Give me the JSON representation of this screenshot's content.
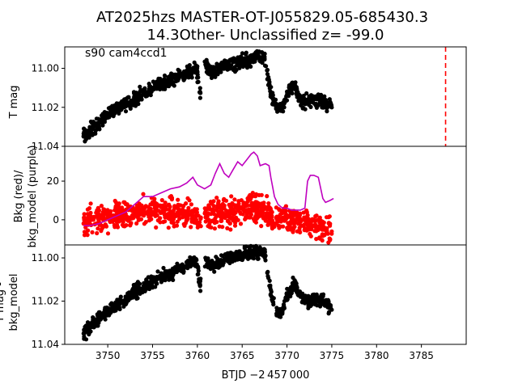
{
  "chart_data": [
    {
      "type": "scatter",
      "panel": "top",
      "title_line1": "AT2025hzs  MASTER-OT-J055829.05-685430.3",
      "title_line2": "14.3Other- Unclassified z= -99.0",
      "annotation": "s90 cam4ccd1",
      "ylabel": "T mag",
      "ylim": [
        11.04,
        10.989
      ],
      "yticks": [
        11.0,
        11.02,
        11.04
      ],
      "ytick_labels": [
        "11.00",
        "11.02",
        "11.04"
      ],
      "vline_x": 3787.7,
      "series": [
        {
          "name": "T mag",
          "color": "#000000",
          "x": [
            3747.3,
            3748,
            3749,
            3750,
            3751,
            3752,
            3753,
            3754,
            3755,
            3756,
            3757,
            3758,
            3759,
            3759.9,
            3760.3,
            3760.9,
            3761.5,
            3762.5,
            3763.5,
            3764.5,
            3765.5,
            3766.5,
            3767.5,
            3768.3,
            3768.9,
            3769.5,
            3770,
            3770.8,
            3771.5,
            3772.3,
            3773,
            3774,
            3775
          ],
          "y": [
            11.035,
            11.032,
            11.028,
            11.024,
            11.021,
            11.018,
            11.016,
            11.012,
            11.01,
            11.008,
            11.006,
            11.004,
            11.002,
            11.0,
            11.012,
            10.998,
            11.002,
            11.0,
            10.998,
            10.997,
            10.996,
            10.994,
            10.995,
            11.015,
            11.02,
            11.02,
            11.014,
            11.008,
            11.016,
            11.017,
            11.016,
            11.017,
            11.02
          ]
        }
      ]
    },
    {
      "type": "scatter",
      "panel": "middle",
      "ylabel_line1": "Bkg (red)/",
      "ylabel_line2": "bkg_model (purple)",
      "ylim": [
        -13,
        38
      ],
      "yticks": [
        0,
        20
      ],
      "ytick_labels": [
        "0",
        "20"
      ],
      "series": [
        {
          "name": "Bkg",
          "color": "#ff0000",
          "x": [
            3747.3,
            3748,
            3749,
            3750,
            3751,
            3752,
            3753,
            3754,
            3755,
            3756,
            3757,
            3758,
            3759,
            3759.9,
            3760.3,
            3760.9,
            3761.5,
            3762.5,
            3763.5,
            3764.5,
            3765.5,
            3766.5,
            3767.5,
            3768.3,
            3768.9,
            3769.5,
            3770,
            3770.8,
            3771.5,
            3772.3,
            3773,
            3774,
            3775
          ],
          "y": [
            -2,
            0,
            1,
            2,
            2,
            3,
            3,
            4,
            4,
            4,
            4,
            4,
            3,
            2,
            -3,
            3,
            3,
            4,
            4,
            5,
            5,
            6,
            6,
            2,
            0,
            1,
            1,
            0,
            -1,
            -2,
            -3,
            -4,
            -6
          ]
        },
        {
          "name": "bkg_model",
          "color": "#bf00bf",
          "x": [
            3747.3,
            3748,
            3749,
            3750,
            3751,
            3752,
            3753,
            3754,
            3755,
            3756,
            3757,
            3758,
            3758.8,
            3759.5,
            3760,
            3760.8,
            3761.5,
            3762,
            3762.5,
            3763,
            3763.5,
            3764,
            3764.5,
            3765,
            3765.5,
            3766,
            3766.3,
            3766.7,
            3767,
            3767.6,
            3768,
            3768.2,
            3768.6,
            3769,
            3769.5,
            3770,
            3770.5,
            3771,
            3771.5,
            3772,
            3772.3,
            3772.6,
            3773,
            3773.5,
            3774,
            3774.3,
            3774.8,
            3775.2
          ],
          "y": [
            -3,
            -3,
            -2,
            0,
            2,
            4,
            8,
            12,
            12,
            14,
            16,
            17,
            19,
            22,
            18,
            16,
            18,
            24,
            29,
            24,
            22,
            26,
            30,
            28,
            31,
            34,
            35,
            33,
            28,
            29,
            28,
            22,
            12,
            8,
            6,
            6,
            5,
            5,
            5,
            6,
            20,
            23,
            23,
            22,
            11,
            9,
            10,
            11
          ]
        }
      ]
    },
    {
      "type": "scatter",
      "panel": "bottom",
      "ylabel_line1": "T mag -",
      "ylabel_line2": "bkg_model",
      "ylim": [
        11.04,
        10.994
      ],
      "yticks": [
        11.0,
        11.02,
        11.04
      ],
      "ytick_labels": [
        "11.00",
        "11.02",
        "11.04"
      ],
      "xlabel": "BTJD −2 457 000",
      "xlim": [
        3745.2,
        3790.0
      ],
      "xticks": [
        3750,
        3755,
        3760,
        3765,
        3770,
        3775,
        3780,
        3785
      ],
      "xtick_labels": [
        "3750",
        "3755",
        "3760",
        "3765",
        "3770",
        "3775",
        "3780",
        "3785"
      ],
      "series": [
        {
          "name": "T mag - bkg_model",
          "color": "#000000",
          "x": [
            3747.3,
            3748,
            3749,
            3750,
            3751,
            3752,
            3753,
            3754,
            3755,
            3756,
            3757,
            3758,
            3759,
            3759.9,
            3760.3,
            3760.9,
            3761.5,
            3762.5,
            3763.5,
            3764.5,
            3765.5,
            3766.5,
            3767.5,
            3768.3,
            3768.9,
            3769.5,
            3770,
            3770.8,
            3771.5,
            3772.3,
            3773,
            3774,
            3775
          ],
          "y": [
            11.035,
            11.032,
            11.028,
            11.025,
            11.022,
            11.019,
            11.016,
            11.013,
            11.011,
            11.009,
            11.007,
            11.005,
            11.003,
            11.001,
            11.013,
            11.0,
            11.004,
            11.002,
            11.0,
            10.999,
            10.998,
            10.997,
            10.998,
            11.018,
            11.026,
            11.024,
            11.018,
            11.012,
            11.018,
            11.02,
            11.019,
            11.02,
            11.024
          ]
        }
      ]
    }
  ]
}
